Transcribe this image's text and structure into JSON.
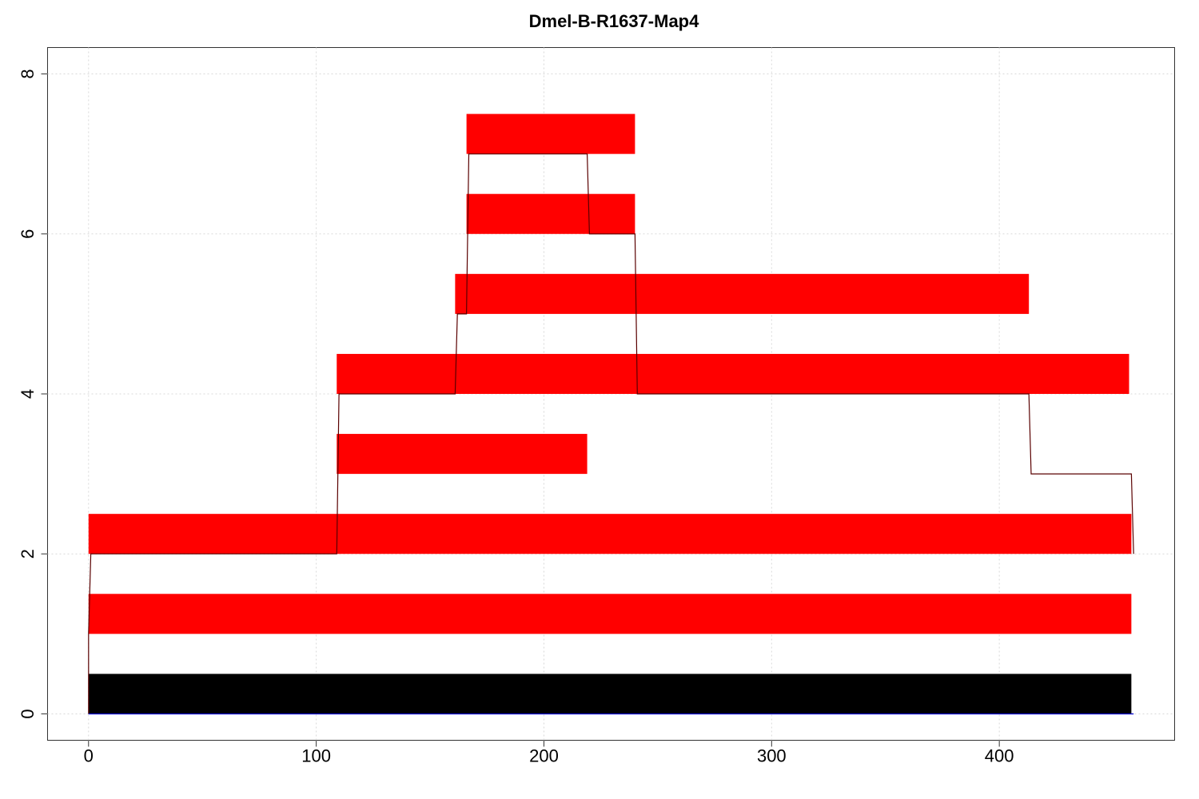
{
  "chart_data": {
    "type": "bar",
    "title": "Dmel-B-R1637-Map4",
    "xlabel": "",
    "ylabel": "",
    "xlim": [
      -18,
      477
    ],
    "ylim": [
      -0.33,
      8.33
    ],
    "grid": true,
    "x_ticks": [
      0,
      100,
      200,
      300,
      400
    ],
    "y_ticks": [
      0,
      2,
      4,
      6,
      8
    ],
    "bars": [
      {
        "x0": 0,
        "x1": 458,
        "y0": 0,
        "y1": 0.5,
        "color": "#000000"
      },
      {
        "x0": 0,
        "x1": 458,
        "y0": 1,
        "y1": 1.5,
        "color": "#ff0000"
      },
      {
        "x0": 0,
        "x1": 458,
        "y0": 2,
        "y1": 2.5,
        "color": "#ff0000"
      },
      {
        "x0": 109,
        "x1": 219,
        "y0": 3,
        "y1": 3.5,
        "color": "#ff0000"
      },
      {
        "x0": 109,
        "x1": 457,
        "y0": 4,
        "y1": 4.5,
        "color": "#ff0000"
      },
      {
        "x0": 161,
        "x1": 413,
        "y0": 5,
        "y1": 5.5,
        "color": "#ff0000"
      },
      {
        "x0": 166,
        "x1": 240,
        "y0": 6,
        "y1": 6.5,
        "color": "#ff0000"
      },
      {
        "x0": 166,
        "x1": 240,
        "y0": 7,
        "y1": 7.5,
        "color": "#ff0000"
      }
    ],
    "coverage_line": {
      "color": "#5a0000",
      "points": [
        [
          0,
          0
        ],
        [
          0,
          1
        ],
        [
          1,
          2
        ],
        [
          109,
          2
        ],
        [
          110,
          4
        ],
        [
          161,
          4
        ],
        [
          162,
          5
        ],
        [
          166,
          5
        ],
        [
          167,
          7
        ],
        [
          219,
          7
        ],
        [
          220,
          6
        ],
        [
          240,
          6
        ],
        [
          241,
          4
        ],
        [
          413,
          4
        ],
        [
          414,
          3
        ],
        [
          458,
          3
        ],
        [
          459,
          2
        ]
      ]
    },
    "baseline_line": {
      "color": "#0000cc",
      "points": [
        [
          0,
          0
        ],
        [
          459,
          0
        ]
      ]
    }
  }
}
